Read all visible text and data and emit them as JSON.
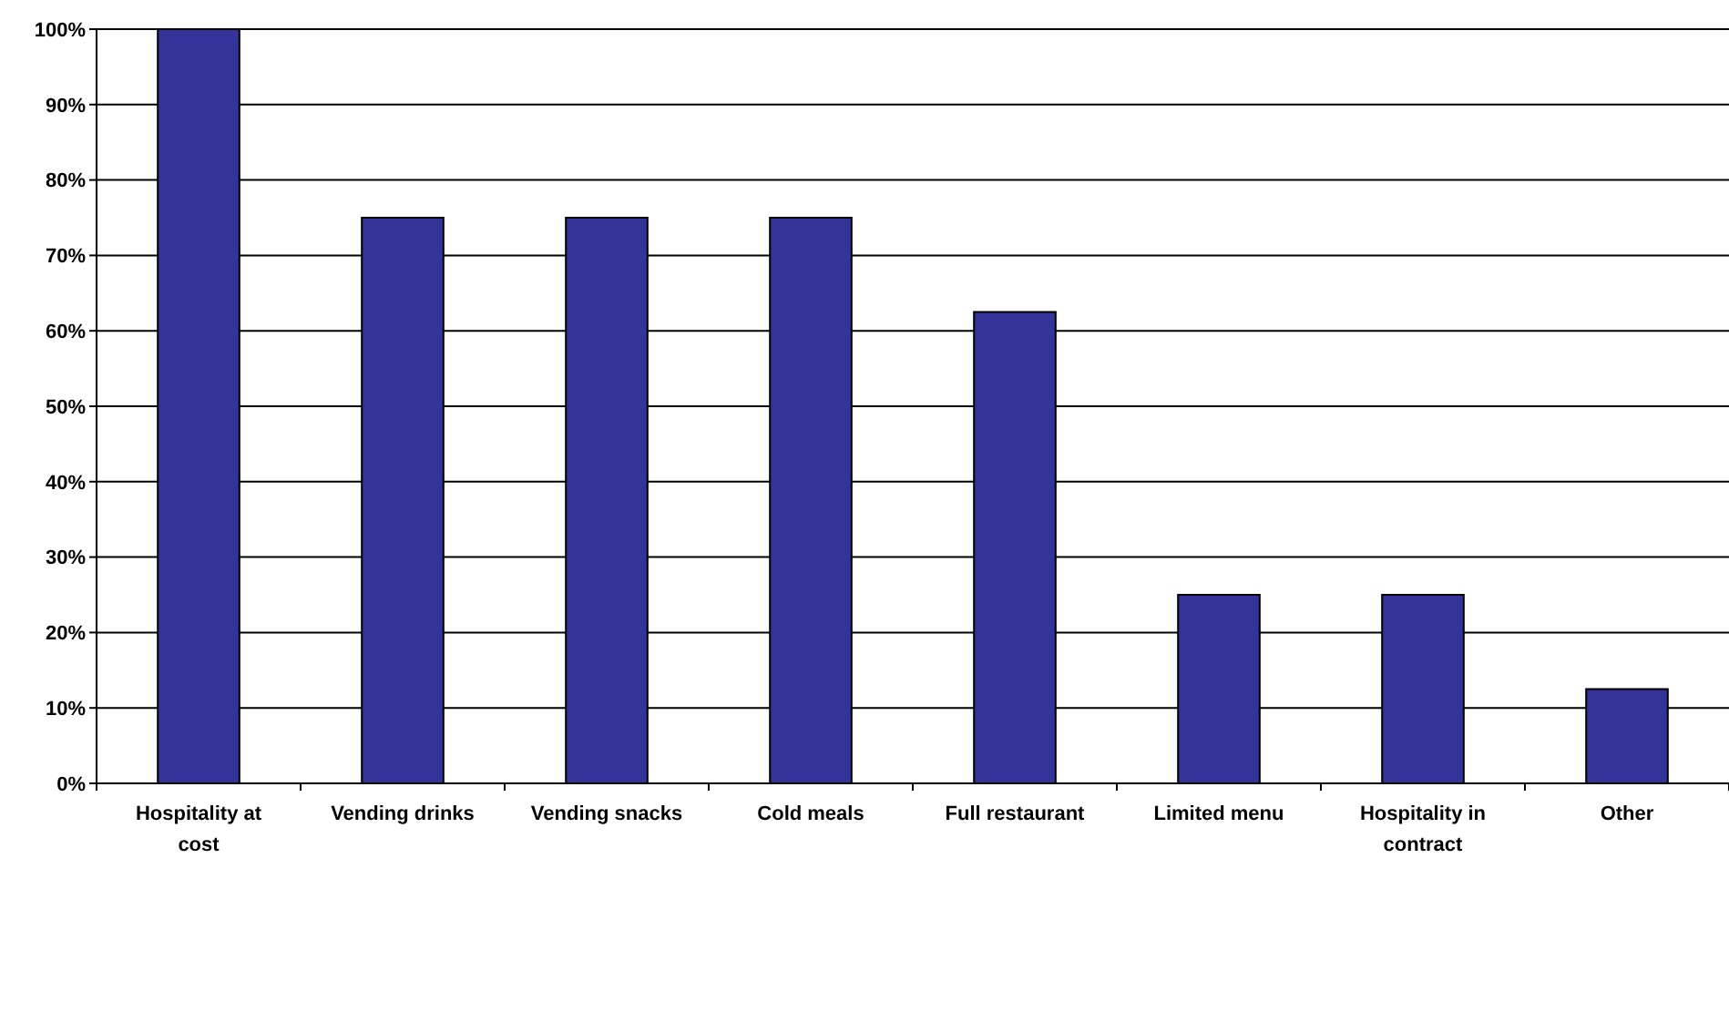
{
  "chart_data": {
    "type": "bar",
    "categories": [
      "Hospitality at cost",
      "Vending drinks",
      "Vending snacks",
      "Cold meals",
      "Full restaurant",
      "Limited menu",
      "Hospitality in contract",
      "Other"
    ],
    "values": [
      100,
      75,
      75,
      75,
      62.5,
      25,
      25,
      12.5
    ],
    "color": "#333399",
    "ylim": [
      0,
      100
    ],
    "yticks": [
      {
        "value": 0,
        "label": "0%"
      },
      {
        "value": 10,
        "label": "10%"
      },
      {
        "value": 20,
        "label": "20%"
      },
      {
        "value": 30,
        "label": "30%"
      },
      {
        "value": 40,
        "label": "40%"
      },
      {
        "value": 50,
        "label": "50%"
      },
      {
        "value": 60,
        "label": "60%"
      },
      {
        "value": 70,
        "label": "70%"
      },
      {
        "value": 80,
        "label": "80%"
      },
      {
        "value": 90,
        "label": "90%"
      },
      {
        "value": 100,
        "label": "100%"
      }
    ],
    "grid": "y"
  }
}
